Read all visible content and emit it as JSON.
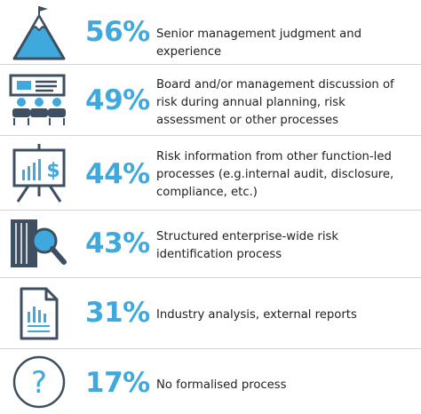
{
  "colors": {
    "accent": "#3fa9de",
    "dark": "#3d4f60",
    "text": "#222222",
    "separator": "#cfd4d8"
  },
  "rows": [
    {
      "percent": "56%",
      "text": "Senior management judgment and experience",
      "icon": "mountain-flag-icon"
    },
    {
      "percent": "49%",
      "text": "Board and/or management discussion of risk during annual planning, risk assessment or other processes",
      "icon": "meeting-presentation-icon"
    },
    {
      "percent": "44%",
      "text": "Risk information from other function-led processes (e.g.internal audit, disclosure, compliance, etc.)",
      "icon": "easel-chart-icon"
    },
    {
      "percent": "43%",
      "text": "Structured enterprise-wide risk identification process",
      "icon": "magnifier-document-icon"
    },
    {
      "percent": "31%",
      "text": "Industry analysis, external reports",
      "icon": "report-document-icon"
    },
    {
      "percent": "17%",
      "text": "No formalised process",
      "icon": "question-circle-icon"
    }
  ]
}
